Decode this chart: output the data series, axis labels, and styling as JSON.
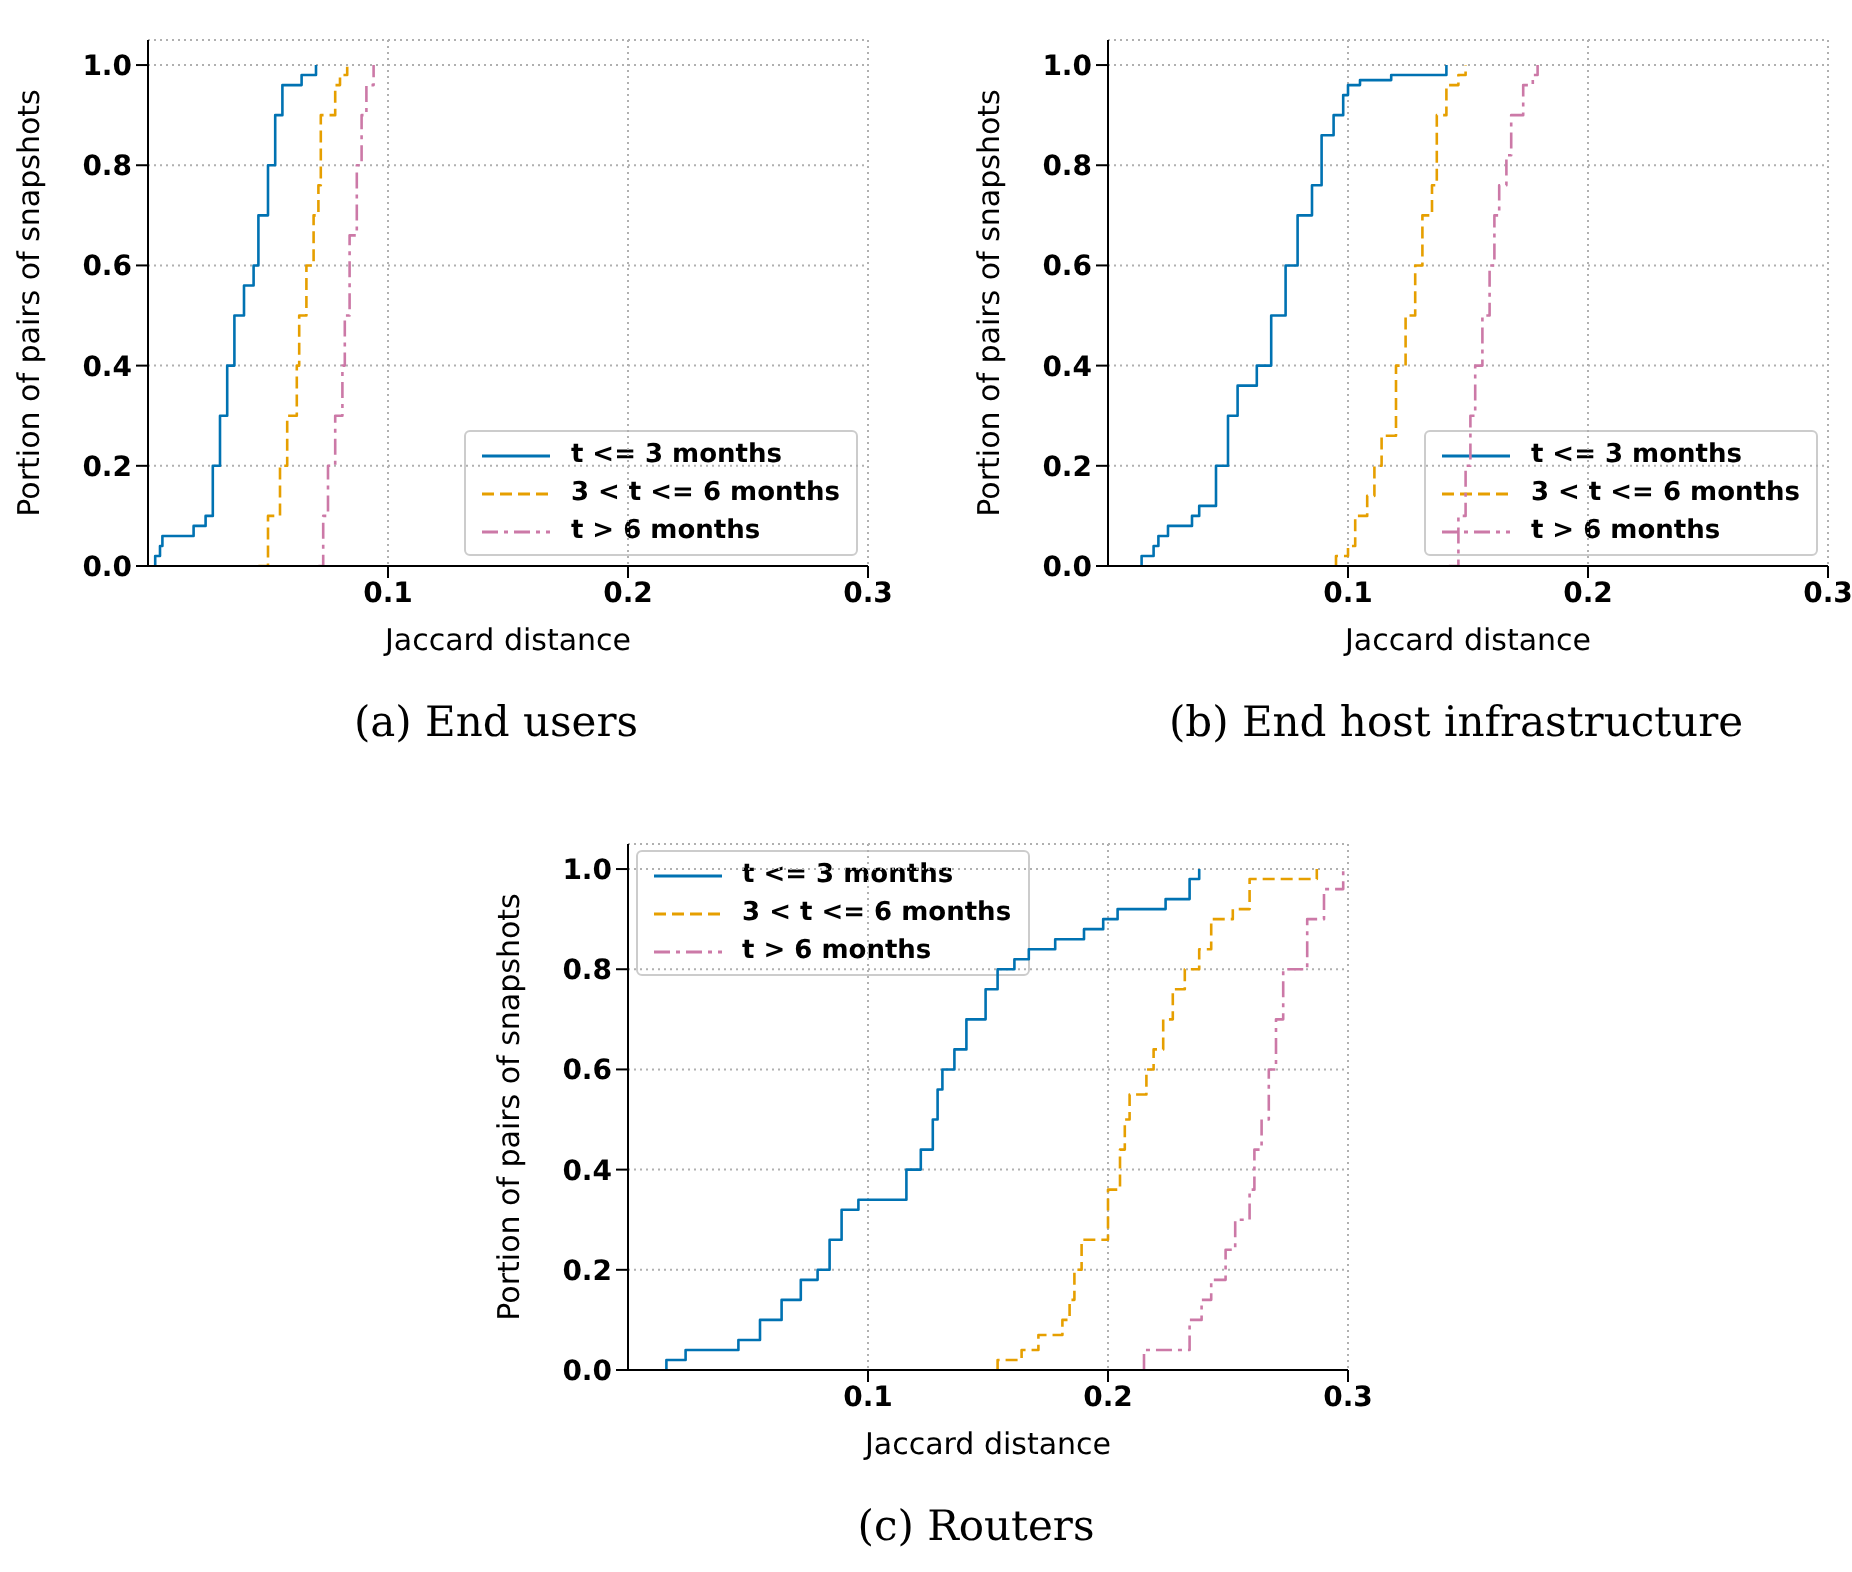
{
  "chart_data": [
    {
      "type": "step",
      "xlabel": "Jaccard distance",
      "ylabel": "Portion of pairs of snapshots",
      "annotations": [
        "(a) End users"
      ],
      "xlim": [
        0,
        0.3
      ],
      "xticks": [
        0.1,
        0.2,
        0.3
      ],
      "ylim": [
        0,
        1.05
      ],
      "yticks": [
        {
          "value": 0,
          "label": "0.0"
        },
        {
          "value": 0.2,
          "label": "0.2"
        },
        {
          "value": 0.4,
          "label": "0.4"
        },
        {
          "value": 0.6,
          "label": "0.6"
        },
        {
          "value": 0.8,
          "label": "0.8"
        },
        {
          "value": 1,
          "label": "1.0"
        }
      ],
      "grid": true,
      "legend": "bottom right",
      "series": [
        {
          "name": "t <= 3 months",
          "color": "#0072b2",
          "line_style": "solid",
          "x": [
            0.003,
            0.003,
            0.005,
            0.006,
            0.019,
            0.024,
            0.027,
            0.03,
            0.033,
            0.036,
            0.04,
            0.044,
            0.046,
            0.05,
            0.053,
            0.056,
            0.064,
            0.07
          ],
          "values": [
            0,
            0.02,
            0.04,
            0.06,
            0.08,
            0.1,
            0.2,
            0.3,
            0.4,
            0.5,
            0.56,
            0.6,
            0.7,
            0.8,
            0.9,
            0.96,
            0.98,
            1.0
          ]
        },
        {
          "name": "3 < t <= 6 months",
          "color": "#e69f00",
          "line_style": "dashed",
          "x": [
            0.046,
            0.05,
            0.055,
            0.058,
            0.062,
            0.063,
            0.066,
            0.069,
            0.071,
            0.072,
            0.078,
            0.08,
            0.083
          ],
          "values": [
            0,
            0.1,
            0.2,
            0.3,
            0.4,
            0.5,
            0.6,
            0.7,
            0.76,
            0.9,
            0.96,
            0.98,
            1.0
          ]
        },
        {
          "name": "t > 6 months",
          "color": "#cc79a7",
          "line_style": "dashdot",
          "x": [
            0.071,
            0.073,
            0.075,
            0.078,
            0.081,
            0.082,
            0.084,
            0.087,
            0.089,
            0.091,
            0.094
          ],
          "values": [
            0,
            0.1,
            0.2,
            0.3,
            0.4,
            0.5,
            0.66,
            0.8,
            0.9,
            0.96,
            1.0
          ]
        }
      ]
    },
    {
      "type": "step",
      "xlabel": "Jaccard distance",
      "ylabel": "Portion of pairs of snapshots",
      "annotations": [
        "(b) End host infrastructure"
      ],
      "xlim": [
        0,
        0.3
      ],
      "xticks": [
        0.1,
        0.2,
        0.3
      ],
      "ylim": [
        0,
        1.05
      ],
      "yticks": [
        {
          "value": 0,
          "label": "0.0"
        },
        {
          "value": 0.2,
          "label": "0.2"
        },
        {
          "value": 0.4,
          "label": "0.4"
        },
        {
          "value": 0.6,
          "label": "0.6"
        },
        {
          "value": 0.8,
          "label": "0.8"
        },
        {
          "value": 1,
          "label": "1.0"
        }
      ],
      "grid": true,
      "legend": "bottom right",
      "series": [
        {
          "name": "t <= 3 months",
          "color": "#0072b2",
          "line_style": "solid",
          "x": [
            0.014,
            0.014,
            0.019,
            0.021,
            0.025,
            0.035,
            0.038,
            0.045,
            0.05,
            0.054,
            0.062,
            0.068,
            0.074,
            0.079,
            0.085,
            0.089,
            0.094,
            0.098,
            0.1,
            0.105,
            0.118,
            0.141
          ],
          "values": [
            0,
            0.02,
            0.04,
            0.06,
            0.08,
            0.1,
            0.12,
            0.2,
            0.3,
            0.36,
            0.4,
            0.5,
            0.6,
            0.7,
            0.76,
            0.86,
            0.9,
            0.94,
            0.96,
            0.97,
            0.98,
            1.0
          ]
        },
        {
          "name": "3 < t <= 6 months",
          "color": "#e69f00",
          "line_style": "dashed",
          "x": [
            0.095,
            0.095,
            0.1,
            0.103,
            0.108,
            0.111,
            0.114,
            0.12,
            0.124,
            0.128,
            0.131,
            0.135,
            0.137,
            0.141,
            0.146,
            0.149
          ],
          "values": [
            0,
            0.02,
            0.04,
            0.1,
            0.14,
            0.2,
            0.26,
            0.4,
            0.5,
            0.6,
            0.7,
            0.76,
            0.9,
            0.96,
            0.98,
            1.0
          ]
        },
        {
          "name": "t > 6 months",
          "color": "#cc79a7",
          "line_style": "dashdot",
          "x": [
            0.142,
            0.146,
            0.149,
            0.151,
            0.153,
            0.156,
            0.159,
            0.161,
            0.163,
            0.166,
            0.168,
            0.173,
            0.177,
            0.179
          ],
          "values": [
            0,
            0.1,
            0.2,
            0.3,
            0.4,
            0.5,
            0.6,
            0.7,
            0.76,
            0.82,
            0.9,
            0.96,
            0.98,
            1.0
          ]
        }
      ]
    },
    {
      "type": "step",
      "xlabel": "Jaccard distance",
      "ylabel": "Portion of pairs of snapshots",
      "annotations": [
        "(c) Routers"
      ],
      "xlim": [
        0,
        0.3
      ],
      "xticks": [
        0.1,
        0.2,
        0.3
      ],
      "ylim": [
        0,
        1.05
      ],
      "yticks": [
        {
          "value": 0,
          "label": "0.0"
        },
        {
          "value": 0.2,
          "label": "0.2"
        },
        {
          "value": 0.4,
          "label": "0.4"
        },
        {
          "value": 0.6,
          "label": "0.6"
        },
        {
          "value": 0.8,
          "label": "0.8"
        },
        {
          "value": 1,
          "label": "1.0"
        }
      ],
      "grid": true,
      "legend": "top left",
      "series": [
        {
          "name": "t <= 3 months",
          "color": "#0072b2",
          "line_style": "solid",
          "x": [
            0.016,
            0.016,
            0.024,
            0.046,
            0.055,
            0.064,
            0.072,
            0.079,
            0.084,
            0.089,
            0.096,
            0.116,
            0.122,
            0.127,
            0.129,
            0.131,
            0.136,
            0.141,
            0.149,
            0.154,
            0.161,
            0.167,
            0.178,
            0.19,
            0.198,
            0.204,
            0.224,
            0.234,
            0.238
          ],
          "values": [
            0,
            0.02,
            0.04,
            0.06,
            0.1,
            0.14,
            0.18,
            0.2,
            0.26,
            0.32,
            0.34,
            0.4,
            0.44,
            0.5,
            0.56,
            0.6,
            0.64,
            0.7,
            0.76,
            0.8,
            0.82,
            0.84,
            0.86,
            0.88,
            0.9,
            0.92,
            0.94,
            0.98,
            1.0
          ]
        },
        {
          "name": "3 < t <= 6 months",
          "color": "#e69f00",
          "line_style": "dashed",
          "x": [
            0.154,
            0.154,
            0.164,
            0.171,
            0.181,
            0.184,
            0.186,
            0.189,
            0.2,
            0.205,
            0.207,
            0.209,
            0.216,
            0.219,
            0.223,
            0.227,
            0.232,
            0.238,
            0.243,
            0.252,
            0.259,
            0.287
          ],
          "values": [
            0,
            0.02,
            0.04,
            0.07,
            0.1,
            0.14,
            0.2,
            0.26,
            0.36,
            0.44,
            0.5,
            0.55,
            0.6,
            0.64,
            0.7,
            0.76,
            0.8,
            0.84,
            0.9,
            0.92,
            0.98,
            1.0
          ]
        },
        {
          "name": "t > 6 months",
          "color": "#cc79a7",
          "line_style": "dashdot",
          "x": [
            0.215,
            0.215,
            0.234,
            0.239,
            0.243,
            0.249,
            0.253,
            0.259,
            0.261,
            0.264,
            0.267,
            0.27,
            0.273,
            0.283,
            0.29,
            0.298
          ],
          "values": [
            0,
            0.04,
            0.1,
            0.14,
            0.18,
            0.24,
            0.3,
            0.36,
            0.44,
            0.5,
            0.6,
            0.7,
            0.8,
            0.9,
            0.96,
            1.0
          ]
        }
      ]
    }
  ]
}
